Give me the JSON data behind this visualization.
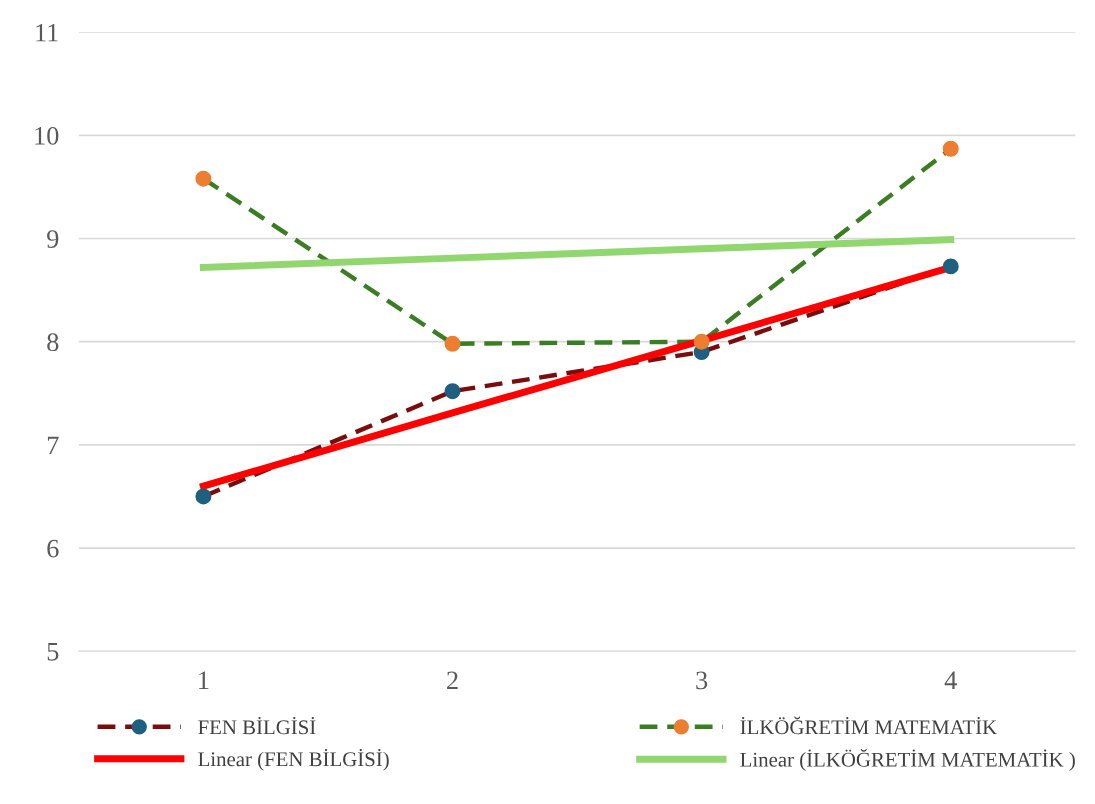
{
  "chart_data": {
    "type": "line",
    "x": [
      1,
      2,
      3,
      4
    ],
    "xlim": [
      0.5,
      4.5
    ],
    "xticks": [
      1,
      2,
      3,
      4
    ],
    "ylim": [
      5,
      11
    ],
    "yticks": [
      5,
      6,
      7,
      8,
      9,
      10,
      11
    ],
    "grid": "y",
    "legend": "bottom",
    "marker": "circle",
    "line_style": "dashed",
    "series": [
      {
        "name": "FEN BİLGİSİ",
        "color": "#7b0c0c",
        "colors": [
          "#1f5f7f",
          "#1f5f7f",
          "#1f5f7f",
          "#1f5f7f"
        ],
        "values": [
          6.5,
          7.52,
          7.9,
          8.73
        ]
      },
      {
        "name": "İLKÖĞRETİM MATEMATİK",
        "color": "#3a7d22",
        "colors": [
          "#ed7d31",
          "#ed7d31",
          "#ed7d31",
          "#ed7d31"
        ],
        "values": [
          9.58,
          7.98,
          8.0,
          9.87
        ]
      },
      {
        "name": "Linear (FEN BİLGİSİ)",
        "type": "line",
        "line_style": "solid",
        "marker": "none",
        "color": "#ff0000",
        "values": [
          6.6,
          7.31,
          8.01,
          8.72
        ]
      },
      {
        "name": "Linear (İLKÖĞRETİM MATEMATİK )",
        "type": "line",
        "line_style": "solid",
        "marker": "none",
        "color": "#92d66f",
        "values": [
          8.72,
          8.81,
          8.9,
          8.99
        ]
      }
    ]
  }
}
